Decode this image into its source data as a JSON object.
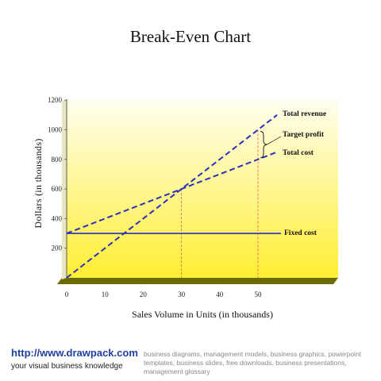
{
  "page": {
    "title": "Break-Even Chart"
  },
  "footer": {
    "url": "http://www.drawpack.com",
    "tagline": "your visual business knowledge",
    "description": "business diagrams, management models, business graphics, powerpoint templates, business slides, free downloads, business presentations, management glossary"
  },
  "colors": {
    "line": "#2a2fbf",
    "guide": "#e06050",
    "wall_top": "#fffef0",
    "wall_bottom": "#ffee33",
    "floor": "#6b6b00"
  },
  "chart_data": {
    "type": "line",
    "title": "Break-Even Chart",
    "xlabel": "Sales Volume in Units (in thousands)",
    "ylabel": "Dollars (in thousands)",
    "xlim": [
      0,
      60
    ],
    "ylim": [
      0,
      1200
    ],
    "xticks": [
      0,
      10,
      20,
      30,
      40,
      50
    ],
    "yticks": [
      200,
      400,
      600,
      800,
      1000,
      1200
    ],
    "series": [
      {
        "name": "Total revenue",
        "style": "dashed",
        "x": [
          0,
          55
        ],
        "y": [
          0,
          1100
        ]
      },
      {
        "name": "Total cost",
        "style": "dashed",
        "x": [
          0,
          55
        ],
        "y": [
          300,
          850
        ]
      },
      {
        "name": "Fixed cost",
        "style": "solid",
        "x": [
          0,
          56
        ],
        "y": [
          300,
          300
        ]
      }
    ],
    "guides": [
      {
        "x": 30,
        "y": 600
      },
      {
        "x": 50,
        "y": 1000
      }
    ],
    "annotations": [
      {
        "text": "Target profit",
        "x": 50,
        "y_from": 800,
        "y_to": 1000
      }
    ],
    "grid": false,
    "legend": "inline-labels"
  }
}
